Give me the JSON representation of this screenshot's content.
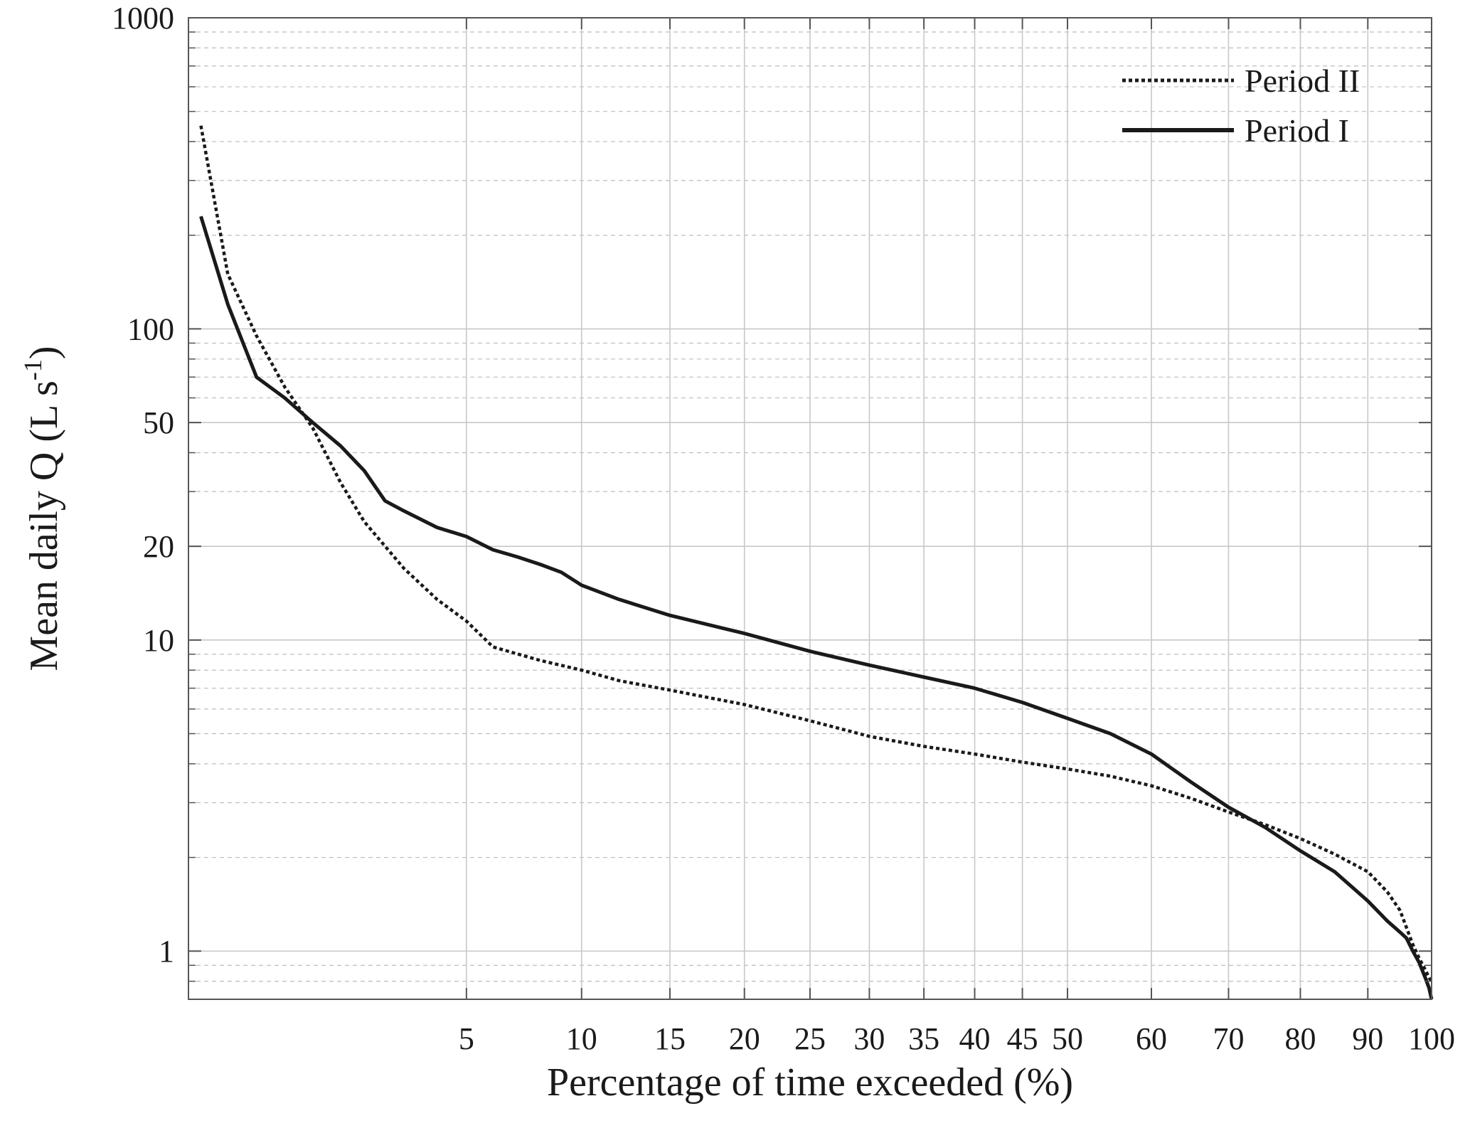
{
  "chart_data": {
    "type": "line",
    "title": "",
    "xlabel": "Percentage of time exceeded (%)",
    "ylabel": {
      "base": "Mean daily Q (L s",
      "superscript": "-1",
      "close": ")"
    },
    "x_scale": "sqrt",
    "y_scale": "log",
    "xlim": [
      0,
      100
    ],
    "ylim": [
      0.7,
      1000
    ],
    "x_ticks": [
      5,
      10,
      15,
      20,
      25,
      30,
      35,
      40,
      45,
      50,
      60,
      70,
      80,
      90,
      100
    ],
    "x_tick_labels": [
      "5",
      "10",
      "15",
      "20",
      "25",
      "30",
      "35",
      "40",
      "45",
      "50",
      "60",
      "70",
      "80",
      "90",
      "100"
    ],
    "y_ticks": [
      1,
      10,
      20,
      50,
      100,
      1000
    ],
    "y_tick_labels": [
      "1",
      "10",
      "20",
      "50",
      "100",
      "1000"
    ],
    "grid": true,
    "legend_position": "top-right",
    "series": [
      {
        "name": "Period II",
        "style": "dotted",
        "color": "#1a1a1a",
        "points": [
          [
            0.01,
            450
          ],
          [
            0.1,
            150
          ],
          [
            0.3,
            95
          ],
          [
            0.6,
            65
          ],
          [
            1.0,
            48
          ],
          [
            1.5,
            32
          ],
          [
            2.0,
            24
          ],
          [
            3.0,
            17
          ],
          [
            4.0,
            13.5
          ],
          [
            5.0,
            11.5
          ],
          [
            6.0,
            9.5
          ],
          [
            8.0,
            8.6
          ],
          [
            10.0,
            8.0
          ],
          [
            12.0,
            7.4
          ],
          [
            15.0,
            6.9
          ],
          [
            20.0,
            6.2
          ],
          [
            25.0,
            5.5
          ],
          [
            30.0,
            4.9
          ],
          [
            35.0,
            4.55
          ],
          [
            40.0,
            4.3
          ],
          [
            45.0,
            4.05
          ],
          [
            50.0,
            3.85
          ],
          [
            55.0,
            3.65
          ],
          [
            60.0,
            3.4
          ],
          [
            65.0,
            3.1
          ],
          [
            70.0,
            2.8
          ],
          [
            75.0,
            2.55
          ],
          [
            80.0,
            2.3
          ],
          [
            85.0,
            2.05
          ],
          [
            90.0,
            1.8
          ],
          [
            93.0,
            1.55
          ],
          [
            95.0,
            1.35
          ],
          [
            97.0,
            1.05
          ],
          [
            98.0,
            0.95
          ],
          [
            99.0,
            0.87
          ],
          [
            99.6,
            0.82
          ],
          [
            100.0,
            0.8
          ]
        ]
      },
      {
        "name": "Period I",
        "style": "solid",
        "color": "#1a1a1a",
        "points": [
          [
            0.01,
            230
          ],
          [
            0.1,
            120
          ],
          [
            0.3,
            70
          ],
          [
            0.6,
            60
          ],
          [
            1.0,
            50
          ],
          [
            1.5,
            42
          ],
          [
            2.0,
            35
          ],
          [
            2.5,
            28
          ],
          [
            3.0,
            26
          ],
          [
            4.0,
            23
          ],
          [
            5.0,
            21.5
          ],
          [
            6.0,
            19.5
          ],
          [
            7.0,
            18.5
          ],
          [
            8.0,
            17.5
          ],
          [
            9.0,
            16.5
          ],
          [
            10.0,
            15
          ],
          [
            12.0,
            13.5
          ],
          [
            15.0,
            12
          ],
          [
            20.0,
            10.5
          ],
          [
            25.0,
            9.2
          ],
          [
            30.0,
            8.3
          ],
          [
            35.0,
            7.6
          ],
          [
            40.0,
            7.0
          ],
          [
            45.0,
            6.3
          ],
          [
            50.0,
            5.6
          ],
          [
            55.0,
            5.0
          ],
          [
            60.0,
            4.3
          ],
          [
            65.0,
            3.5
          ],
          [
            70.0,
            2.9
          ],
          [
            75.0,
            2.5
          ],
          [
            80.0,
            2.1
          ],
          [
            85.0,
            1.8
          ],
          [
            90.0,
            1.45
          ],
          [
            93.0,
            1.25
          ],
          [
            95.0,
            1.15
          ],
          [
            96.0,
            1.1
          ],
          [
            97.0,
            1.0
          ],
          [
            98.0,
            0.92
          ],
          [
            99.0,
            0.82
          ],
          [
            99.6,
            0.76
          ],
          [
            100.0,
            0.7
          ]
        ]
      }
    ]
  }
}
